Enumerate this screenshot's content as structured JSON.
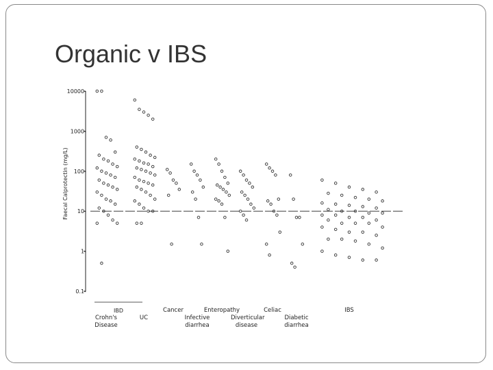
{
  "title": "Organic v IBS",
  "chart_data": {
    "type": "strip",
    "y_label": "Faecal Calprotectin (mg/L)",
    "group_label": "IBD",
    "categories": [
      "Crohn's Disease",
      "UC",
      "Cancer",
      "Infective diarrhea",
      "Enteropathy",
      "Diverticular disease",
      "Celiac",
      "Diabetic diarrhea",
      "IBS"
    ],
    "values": [
      [
        10000,
        10000,
        700,
        600,
        300,
        250,
        200,
        180,
        150,
        130,
        120,
        100,
        90,
        80,
        70,
        60,
        50,
        45,
        40,
        35,
        30,
        25,
        20,
        18,
        15,
        12,
        10,
        8,
        6,
        5,
        5,
        0.5
      ],
      [
        6000,
        3500,
        3000,
        2500,
        2000,
        400,
        350,
        300,
        250,
        220,
        200,
        180,
        160,
        150,
        130,
        120,
        110,
        100,
        90,
        80,
        70,
        60,
        55,
        50,
        45,
        40,
        35,
        30,
        25,
        20,
        18,
        15,
        12,
        10,
        10,
        5,
        5
      ],
      [
        110,
        90,
        60,
        50,
        35,
        25,
        1.5
      ],
      [
        150,
        100,
        80,
        60,
        40,
        30,
        20,
        7,
        1.5
      ],
      [
        200,
        150,
        100,
        70,
        50,
        45,
        40,
        35,
        30,
        25,
        20,
        18,
        15,
        7,
        1
      ],
      [
        100,
        80,
        60,
        50,
        40,
        30,
        25,
        20,
        15,
        12,
        10,
        8,
        6
      ],
      [
        150,
        120,
        100,
        80,
        20,
        18,
        15,
        10,
        8,
        3,
        1.5,
        0.8
      ],
      [
        80,
        20,
        7,
        7,
        1.5,
        0.5,
        0.4
      ],
      [
        60,
        50,
        40,
        35,
        30,
        28,
        25,
        22,
        20,
        18,
        16,
        15,
        14,
        13,
        12,
        11,
        10,
        10,
        9,
        9,
        8,
        8,
        7,
        7,
        6,
        6,
        5,
        5,
        5,
        4,
        4,
        3.5,
        3,
        3,
        2.5,
        2,
        2,
        1.8,
        1.5,
        1.2,
        1,
        0.8,
        0.7,
        0.6,
        0.6
      ]
    ],
    "log_scale": true,
    "ylim": [
      0.1,
      10000
    ],
    "yticks": [
      {
        "value": 10000,
        "label": "10000-"
      },
      {
        "value": 1000,
        "label": "1000-"
      },
      {
        "value": 100,
        "label": "100-"
      },
      {
        "value": 10,
        "label": "10-"
      },
      {
        "value": 1,
        "label": "1-"
      },
      {
        "value": 0.1,
        "label": "0.1-"
      }
    ],
    "reference_line": 10,
    "color": "#333333"
  }
}
